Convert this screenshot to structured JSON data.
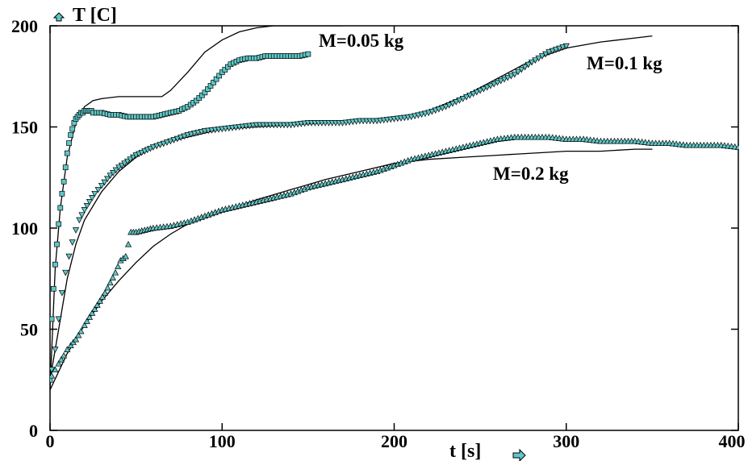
{
  "chart_data": {
    "type": "scatter",
    "title": "",
    "xlabel": "t [s]",
    "ylabel": "T [C]",
    "xlim": [
      0,
      400
    ],
    "ylim": [
      0,
      200
    ],
    "xticks": [
      0,
      100,
      200,
      300,
      400
    ],
    "yticks": [
      0,
      50,
      100,
      150,
      200
    ],
    "xtick_labels": [
      "0",
      "100",
      "200",
      "300",
      "400"
    ],
    "ytick_labels": [
      "0",
      "50",
      "100",
      "150",
      "200"
    ],
    "grid": false,
    "marker_color": "#5ec8c8",
    "line_color": "#000000",
    "series": [
      {
        "name": "M=0.05 kg",
        "marker": "square",
        "measured": {
          "x": [
            0,
            1,
            2,
            3,
            4,
            5,
            6,
            7,
            8,
            9,
            10,
            11,
            12,
            13,
            14,
            15,
            16,
            17,
            18,
            19,
            20,
            21,
            22,
            23,
            24,
            25,
            27,
            30,
            35,
            40,
            45,
            50,
            55,
            60,
            65,
            70,
            75,
            80,
            85,
            90,
            95,
            100,
            105,
            110,
            115,
            120,
            125,
            130,
            135,
            140,
            145,
            150
          ],
          "y": [
            25,
            55,
            70,
            82,
            92,
            102,
            110,
            117,
            123,
            130,
            137,
            142,
            146,
            149,
            152,
            154,
            155,
            156,
            157,
            157,
            158,
            158,
            158,
            158,
            158,
            157,
            157,
            157,
            156,
            156,
            155,
            155,
            155,
            155,
            156,
            157,
            158,
            160,
            163,
            167,
            172,
            177,
            181,
            183,
            184,
            184,
            185,
            185,
            185,
            185,
            185,
            186
          ]
        },
        "model": {
          "x": [
            0,
            3,
            6,
            10,
            15,
            20,
            25,
            30,
            40,
            50,
            60,
            65,
            70,
            80,
            90,
            100,
            110,
            120,
            130,
            140,
            150,
            160,
            170
          ],
          "y": [
            20,
            80,
            110,
            135,
            152,
            160,
            163,
            164,
            165,
            165,
            165,
            165,
            168,
            177,
            187,
            193,
            197,
            199,
            200,
            200,
            200,
            200,
            200
          ]
        }
      },
      {
        "name": "M=0.1 kg",
        "marker": "triangle-down",
        "measured": {
          "x": [
            1,
            3,
            5,
            7,
            9,
            11,
            13,
            15,
            17,
            20,
            23,
            26,
            30,
            35,
            40,
            45,
            50,
            55,
            60,
            70,
            80,
            90,
            100,
            110,
            120,
            130,
            140,
            150,
            160,
            170,
            180,
            190,
            200,
            210,
            220,
            230,
            240,
            250,
            260,
            270,
            280,
            290,
            300
          ],
          "y": [
            30,
            40,
            55,
            68,
            78,
            86,
            93,
            99,
            104,
            109,
            113,
            117,
            121,
            126,
            130,
            133,
            136,
            138,
            140,
            143,
            146,
            148,
            149,
            150,
            151,
            151,
            151,
            152,
            152,
            152,
            153,
            153,
            154,
            155,
            157,
            160,
            164,
            168,
            172,
            176,
            182,
            187,
            190
          ]
        },
        "model": {
          "x": [
            0,
            5,
            10,
            15,
            20,
            30,
            40,
            50,
            60,
            70,
            80,
            90,
            100,
            120,
            140,
            160,
            180,
            200,
            220,
            240,
            260,
            280,
            300,
            320,
            340,
            350
          ],
          "y": [
            25,
            50,
            75,
            92,
            104,
            118,
            128,
            135,
            140,
            143,
            145,
            147,
            149,
            150,
            151,
            152,
            153,
            154,
            158,
            165,
            174,
            183,
            189,
            192,
            194,
            195
          ]
        }
      },
      {
        "name": "M=0.2 kg",
        "marker": "triangle-up",
        "measured": {
          "x": [
            1,
            3,
            5,
            8,
            10,
            12,
            15,
            18,
            20,
            23,
            26,
            29,
            32,
            35,
            38,
            41,
            44,
            47,
            50,
            55,
            60,
            70,
            80,
            90,
            100,
            110,
            120,
            130,
            140,
            150,
            160,
            170,
            180,
            190,
            200,
            210,
            220,
            230,
            240,
            250,
            260,
            270,
            280,
            290,
            300,
            310,
            320,
            330,
            340,
            350,
            360,
            370,
            380,
            390,
            400
          ],
          "y": [
            27,
            30,
            33,
            37,
            40,
            42,
            45,
            49,
            52,
            56,
            60,
            64,
            68,
            73,
            78,
            84,
            86,
            98,
            98,
            99,
            100,
            101,
            103,
            106,
            109,
            111,
            113,
            115,
            117,
            120,
            122,
            124,
            126,
            128,
            131,
            134,
            136,
            138,
            140,
            142,
            144,
            145,
            145,
            145,
            144,
            144,
            143,
            143,
            143,
            142,
            142,
            141,
            141,
            141,
            140
          ]
        },
        "model": {
          "x": [
            0,
            10,
            20,
            30,
            40,
            50,
            60,
            70,
            80,
            100,
            120,
            140,
            160,
            180,
            200,
            220,
            240,
            260,
            280,
            300,
            320,
            340,
            350
          ],
          "y": [
            20,
            38,
            52,
            64,
            74,
            83,
            91,
            97,
            102,
            108,
            114,
            119,
            124,
            128,
            132,
            134,
            135,
            136,
            137,
            138,
            138,
            139,
            139
          ]
        }
      }
    ]
  }
}
